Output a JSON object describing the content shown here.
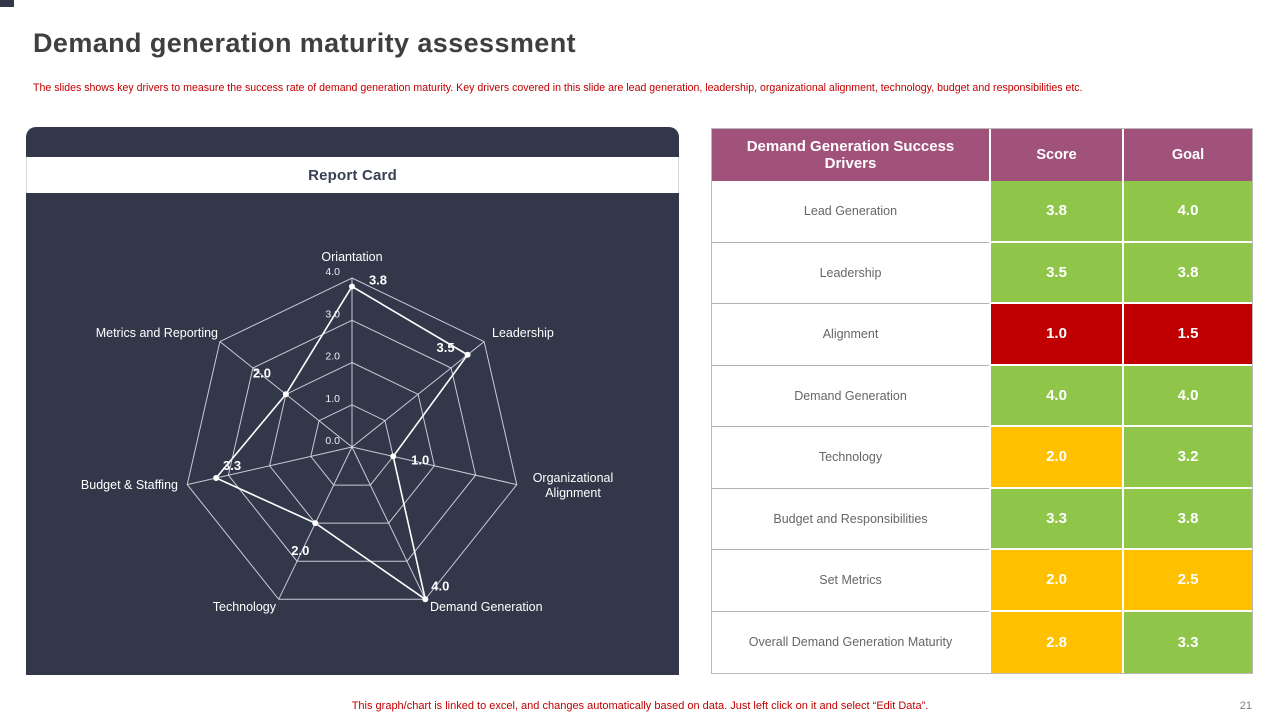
{
  "page": {
    "title": "Demand generation maturity assessment",
    "subtitle": "The slides shows key drivers to measure the success rate of demand generation maturity. Key drivers covered in this slide are lead generation, leadership, organizational alignment, technology, budget and responsibilities etc.",
    "footer_note": "This graph/chart is linked to excel, and changes automatically based on data. Just left click on it and select “Edit Data”.",
    "page_number": "21"
  },
  "report_card": {
    "title": "Report Card"
  },
  "chart_data": {
    "type": "radar",
    "title": "Report Card",
    "axes": [
      "Oriantation",
      "Leadership",
      "Organizational Alignment",
      "Demand Generation",
      "Technology",
      "Budget & Staffing",
      "Metrics and Reporting"
    ],
    "values": [
      3.8,
      3.5,
      1.0,
      4.0,
      2.0,
      3.3,
      2.0
    ],
    "value_labels": [
      "3.8",
      "3.5",
      "1.0",
      "4.0",
      "2.0",
      "3.3",
      "2.0"
    ],
    "scale_min": 0,
    "scale_max": 4,
    "ring_labels": [
      "0.0",
      "1.0",
      "2.0",
      "3.0",
      "4.0"
    ],
    "grid": true,
    "legend": false
  },
  "table": {
    "headers": [
      "Demand Generation Success Drivers",
      "Score",
      "Goal"
    ],
    "rows": [
      {
        "driver": "Lead Generation",
        "score": "3.8",
        "score_color": "green",
        "goal": "4.0",
        "goal_color": "green"
      },
      {
        "driver": "Leadership",
        "score": "3.5",
        "score_color": "green",
        "goal": "3.8",
        "goal_color": "green"
      },
      {
        "driver": "Alignment",
        "score": "1.0",
        "score_color": "red",
        "goal": "1.5",
        "goal_color": "red"
      },
      {
        "driver": "Demand Generation",
        "score": "4.0",
        "score_color": "green",
        "goal": "4.0",
        "goal_color": "green"
      },
      {
        "driver": "Technology",
        "score": "2.0",
        "score_color": "amber",
        "goal": "3.2",
        "goal_color": "green"
      },
      {
        "driver": "Budget and Responsibilities",
        "score": "3.3",
        "score_color": "green",
        "goal": "3.8",
        "goal_color": "green"
      },
      {
        "driver": "Set Metrics",
        "score": "2.0",
        "score_color": "amber",
        "goal": "2.5",
        "goal_color": "amber"
      },
      {
        "driver": "Overall Demand Generation Maturity",
        "score": "2.8",
        "score_color": "amber",
        "goal": "3.3",
        "goal_color": "green"
      }
    ]
  },
  "colors": {
    "panel_navy": "#323749",
    "header_purple": "#a1527b",
    "grid_line": "#d9dce6",
    "cells": {
      "green": "#8fc64a",
      "amber": "#ffc000",
      "red": "#c00000"
    },
    "accent_red": "#c00000"
  }
}
